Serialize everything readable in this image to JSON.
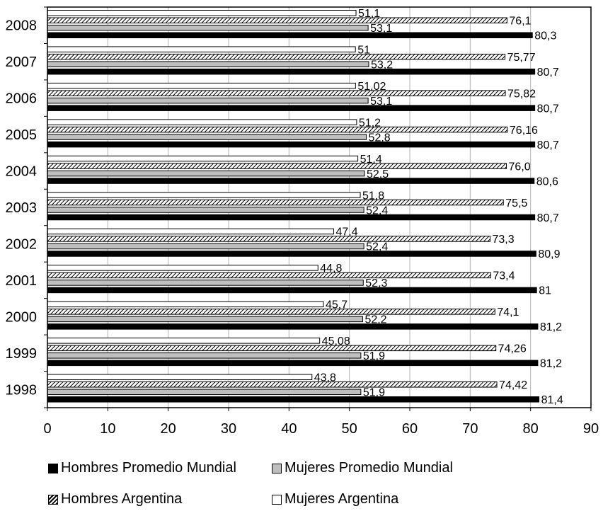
{
  "chart_data": {
    "type": "bar",
    "orientation": "horizontal",
    "title": "",
    "xlabel": "",
    "ylabel": "",
    "xlim": [
      0,
      90
    ],
    "x_ticks": [
      "0",
      "10",
      "20",
      "30",
      "40",
      "50",
      "60",
      "70",
      "80",
      "90"
    ],
    "grid": "vertical",
    "legend_position": "bottom",
    "categories": [
      "2008",
      "2007",
      "2006",
      "2005",
      "2004",
      "2003",
      "2002",
      "2001",
      "2000",
      "1999",
      "1998"
    ],
    "series": [
      {
        "name": "Mujeres Argentina",
        "fill": "white",
        "values": [
          51.1,
          51,
          51.02,
          51.2,
          51.4,
          51.8,
          47.4,
          44.8,
          45.7,
          45.08,
          43.8
        ],
        "labels": [
          "51,1",
          "51",
          "51,02",
          "51,2",
          "51,4",
          "51,8",
          "47,4",
          "44,8",
          "45,7",
          "45,08",
          "43,8"
        ]
      },
      {
        "name": "Hombres Argentina",
        "fill": "hatched",
        "values": [
          76.1,
          75.77,
          75.82,
          76.16,
          76.0,
          75.5,
          73.3,
          73.4,
          74.1,
          74.26,
          74.42
        ],
        "labels": [
          "76,1",
          "75,77",
          "75,82",
          "76,16",
          "76,0",
          "75,5",
          "73,3",
          "73,4",
          "74,1",
          "74,26",
          "74,42"
        ]
      },
      {
        "name": "Mujeres Promedio Mundial",
        "fill": "#bfbfbf",
        "values": [
          53.1,
          53.2,
          53.1,
          52.8,
          52.5,
          52.4,
          52.4,
          52.3,
          52.2,
          51.9,
          51.9
        ],
        "labels": [
          "53,1",
          "53,2",
          "53,1",
          "52,8",
          "52,5",
          "52,4",
          "52,4",
          "52,3",
          "52,2",
          "51,9",
          "51,9"
        ]
      },
      {
        "name": "Hombres Promedio Mundial",
        "fill": "#000000",
        "values": [
          80.3,
          80.7,
          80.7,
          80.7,
          80.6,
          80.7,
          80.9,
          81,
          81.2,
          81.2,
          81.4
        ],
        "labels": [
          "80,3",
          "80,7",
          "80,7",
          "80,7",
          "80,6",
          "80,7",
          "80,9",
          "81",
          "81,2",
          "81,2",
          "81,4"
        ]
      }
    ],
    "legend": {
      "items": [
        {
          "key": "hombres-promedio-mundial",
          "label": "Hombres Promedio Mundial",
          "fill": "#000000"
        },
        {
          "key": "mujeres-promedio-mundial",
          "label": "Mujeres Promedio Mundial",
          "fill": "#bfbfbf"
        },
        {
          "key": "hombres-argentina",
          "label": "Hombres Argentina",
          "fill": "hatched"
        },
        {
          "key": "mujeres-argentina",
          "label": "Mujeres Argentina",
          "fill": "white"
        }
      ]
    }
  }
}
